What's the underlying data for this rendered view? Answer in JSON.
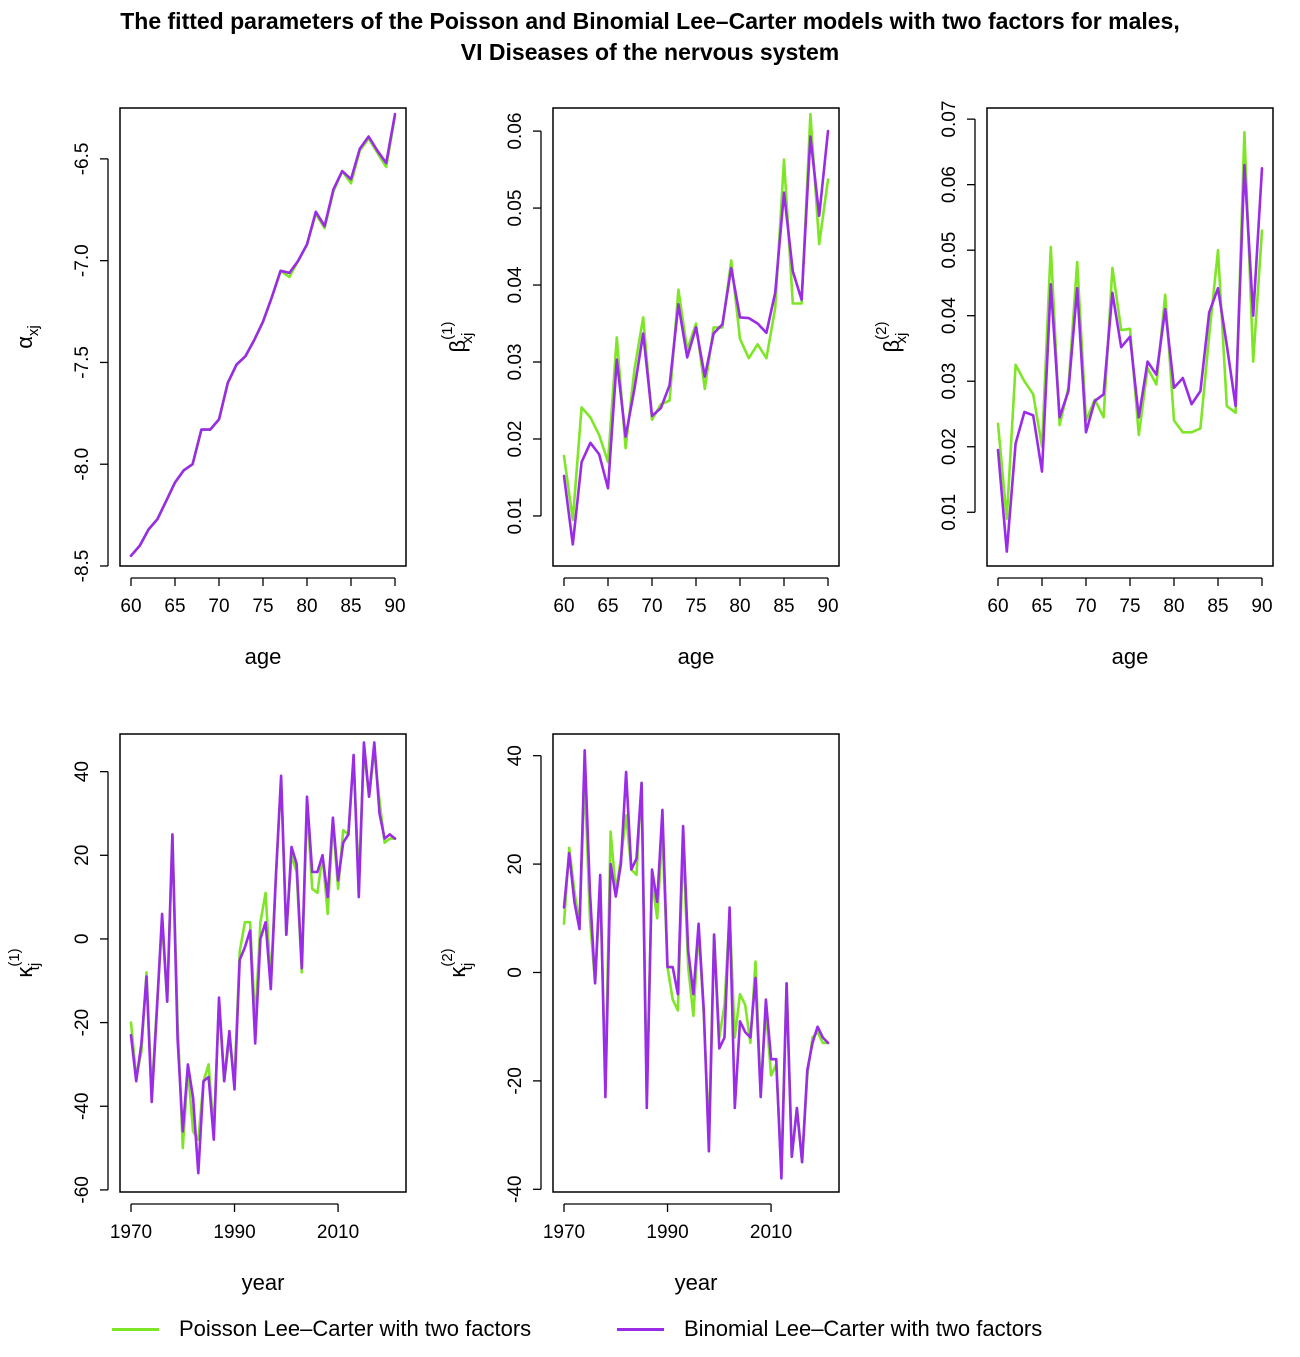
{
  "title": {
    "line1": "The fitted parameters of the Poisson and Binomial Lee–Carter models with two factors for males,",
    "line2": "VI Diseases of the nervous system"
  },
  "legend": {
    "items": [
      {
        "label": "Poisson Lee–Carter with two factors",
        "color": "#7FE627"
      },
      {
        "label": "Binomial Lee–Carter with two factors",
        "color": "#9A2BE6"
      }
    ]
  },
  "chart_data": [
    {
      "id": "alpha",
      "type": "line",
      "xlabel": "age",
      "ylabel": {
        "base": "α",
        "sub": "xj",
        "sup": ""
      },
      "xlim": [
        60,
        90
      ],
      "ylim": [
        -8.5,
        -6.25
      ],
      "xticks": [
        60,
        65,
        70,
        75,
        80,
        85,
        90
      ],
      "yticks": [
        -8.5,
        -8.0,
        -7.5,
        -7.0,
        -6.5
      ],
      "yticklabels": [
        "-8.5",
        "-8.0",
        "-7.5",
        "-7.0",
        "-6.5"
      ],
      "x": [
        60,
        61,
        62,
        63,
        64,
        65,
        66,
        67,
        68,
        69,
        70,
        71,
        72,
        73,
        74,
        75,
        76,
        77,
        78,
        79,
        80,
        81,
        82,
        83,
        84,
        85,
        86,
        87,
        88,
        89,
        90
      ],
      "series": [
        {
          "name": "Poisson Lee–Carter with two factors",
          "values": [
            -8.45,
            -8.4,
            -8.32,
            -8.27,
            -8.18,
            -8.09,
            -8.03,
            -8.0,
            -7.83,
            -7.83,
            -7.78,
            -7.6,
            -7.51,
            -7.47,
            -7.39,
            -7.3,
            -7.18,
            -7.05,
            -7.08,
            -7.0,
            -6.92,
            -6.77,
            -6.84,
            -6.66,
            -6.56,
            -6.62,
            -6.46,
            -6.4,
            -6.47,
            -6.54,
            -6.29
          ]
        },
        {
          "name": "Binomial Lee–Carter with two factors",
          "values": [
            -8.45,
            -8.4,
            -8.32,
            -8.27,
            -8.18,
            -8.09,
            -8.03,
            -8.0,
            -7.83,
            -7.83,
            -7.78,
            -7.6,
            -7.51,
            -7.47,
            -7.39,
            -7.3,
            -7.18,
            -7.05,
            -7.06,
            -7.0,
            -6.92,
            -6.76,
            -6.83,
            -6.65,
            -6.56,
            -6.6,
            -6.45,
            -6.39,
            -6.46,
            -6.52,
            -6.28
          ]
        }
      ]
    },
    {
      "id": "beta1",
      "type": "line",
      "xlabel": "age",
      "ylabel": {
        "base": "β",
        "sub": "xj",
        "sup": "(1)"
      },
      "xlim": [
        60,
        90
      ],
      "ylim": [
        0.0035,
        0.063
      ],
      "xticks": [
        60,
        65,
        70,
        75,
        80,
        85,
        90
      ],
      "yticks": [
        0.01,
        0.02,
        0.03,
        0.04,
        0.05,
        0.06
      ],
      "yticklabels": [
        "0.01",
        "0.02",
        "0.03",
        "0.04",
        "0.05",
        "0.06"
      ],
      "x": [
        60,
        61,
        62,
        63,
        64,
        65,
        66,
        67,
        68,
        69,
        70,
        71,
        72,
        73,
        74,
        75,
        76,
        77,
        78,
        79,
        80,
        81,
        82,
        83,
        84,
        85,
        86,
        87,
        88,
        89,
        90
      ],
      "series": [
        {
          "name": "Poisson Lee–Carter with two factors",
          "values": [
            0.0178,
            0.0095,
            0.0241,
            0.0228,
            0.0205,
            0.017,
            0.0332,
            0.0188,
            0.029,
            0.0358,
            0.0225,
            0.0245,
            0.025,
            0.0394,
            0.0316,
            0.035,
            0.0265,
            0.0345,
            0.0345,
            0.0432,
            0.033,
            0.0305,
            0.0323,
            0.0305,
            0.037,
            0.0563,
            0.0376,
            0.0376,
            0.0622,
            0.0453,
            0.0537
          ]
        },
        {
          "name": "Binomial Lee–Carter with two factors",
          "values": [
            0.0152,
            0.0063,
            0.017,
            0.0195,
            0.018,
            0.0136,
            0.0303,
            0.0203,
            0.0265,
            0.0337,
            0.023,
            0.024,
            0.027,
            0.0375,
            0.0306,
            0.0345,
            0.0281,
            0.0337,
            0.0349,
            0.0422,
            0.0358,
            0.0357,
            0.035,
            0.0338,
            0.039,
            0.052,
            0.0418,
            0.0381,
            0.0593,
            0.049,
            0.06
          ]
        }
      ]
    },
    {
      "id": "beta2",
      "type": "line",
      "xlabel": "age",
      "ylabel": {
        "base": "β",
        "sub": "xj",
        "sup": "(2)"
      },
      "xlim": [
        60,
        90
      ],
      "ylim": [
        0.0018,
        0.0717
      ],
      "xticks": [
        60,
        65,
        70,
        75,
        80,
        85,
        90
      ],
      "yticks": [
        0.01,
        0.02,
        0.03,
        0.04,
        0.05,
        0.06,
        0.07
      ],
      "yticklabels": [
        "0.01",
        "0.02",
        "0.03",
        "0.04",
        "0.05",
        "0.06",
        "0.07"
      ],
      "x": [
        60,
        61,
        62,
        63,
        64,
        65,
        66,
        67,
        68,
        69,
        70,
        71,
        72,
        73,
        74,
        75,
        76,
        77,
        78,
        79,
        80,
        81,
        82,
        83,
        84,
        85,
        86,
        87,
        88,
        89,
        90
      ],
      "series": [
        {
          "name": "Poisson Lee–Carter with two factors",
          "values": [
            0.0235,
            0.009,
            0.0325,
            0.03,
            0.028,
            0.02,
            0.0505,
            0.0233,
            0.029,
            0.0482,
            0.024,
            0.0272,
            0.0245,
            0.0473,
            0.0378,
            0.038,
            0.0218,
            0.032,
            0.0295,
            0.0432,
            0.024,
            0.0222,
            0.0222,
            0.0228,
            0.037,
            0.05,
            0.0262,
            0.0252,
            0.068,
            0.033,
            0.053
          ]
        },
        {
          "name": "Binomial Lee–Carter with two factors",
          "values": [
            0.0195,
            0.004,
            0.0205,
            0.0253,
            0.0248,
            0.0162,
            0.0448,
            0.0245,
            0.0285,
            0.0442,
            0.0222,
            0.027,
            0.028,
            0.0435,
            0.0352,
            0.0368,
            0.0245,
            0.033,
            0.031,
            0.041,
            0.029,
            0.0305,
            0.0265,
            0.0285,
            0.0405,
            0.0442,
            0.0355,
            0.0262,
            0.063,
            0.04,
            0.0625
          ]
        }
      ]
    },
    {
      "id": "kappa1",
      "type": "line",
      "xlabel": "year",
      "ylabel": {
        "base": "κ",
        "sub": "tj",
        "sup": "(1)"
      },
      "xlim": [
        1970,
        2021
      ],
      "ylim": [
        -60.5,
        49
      ],
      "xticks": [
        1970,
        1990,
        2010
      ],
      "yticks": [
        -60,
        -40,
        -20,
        0,
        20,
        40
      ],
      "yticklabels": [
        "-60",
        "-40",
        "-20",
        "0",
        "20",
        "40"
      ],
      "x": [
        1970,
        1971,
        1972,
        1973,
        1974,
        1975,
        1976,
        1977,
        1978,
        1979,
        1980,
        1981,
        1982,
        1983,
        1984,
        1985,
        1986,
        1987,
        1988,
        1989,
        1990,
        1991,
        1992,
        1993,
        1994,
        1995,
        1996,
        1997,
        1998,
        1999,
        2000,
        2001,
        2002,
        2003,
        2004,
        2005,
        2006,
        2007,
        2008,
        2009,
        2010,
        2011,
        2012,
        2013,
        2014,
        2015,
        2016,
        2017,
        2018,
        2019,
        2020,
        2021
      ],
      "series": [
        {
          "name": "Poisson Lee–Carter with two factors",
          "values": [
            -20,
            -33,
            -27,
            -8,
            -37,
            -16,
            4,
            -15,
            25,
            -20,
            -50,
            -31,
            -46,
            -48,
            -34,
            -30,
            -46,
            -15,
            -34,
            -24,
            -34,
            -3,
            4,
            4,
            -20,
            4,
            11,
            -10,
            15,
            38,
            1,
            20,
            16,
            -8,
            32,
            12,
            11,
            20,
            6,
            28,
            12,
            26,
            25,
            43,
            14,
            45,
            34,
            45,
            33,
            23,
            24,
            24
          ]
        },
        {
          "name": "Binomial Lee–Carter with two factors",
          "values": [
            -23,
            -34,
            -25,
            -9,
            -39,
            -17,
            6,
            -15,
            25,
            -24,
            -46,
            -30,
            -38,
            -56,
            -34,
            -33,
            -48,
            -14,
            -34,
            -22,
            -36,
            -5,
            -2,
            2,
            -25,
            0,
            4,
            -12,
            15,
            39,
            1,
            22,
            18,
            -7,
            34,
            16,
            16,
            20,
            10,
            29,
            14,
            23,
            25,
            44,
            10,
            47,
            34,
            47,
            30,
            24,
            25,
            24
          ]
        }
      ]
    },
    {
      "id": "kappa2",
      "type": "line",
      "xlabel": "year",
      "ylabel": {
        "base": "κ",
        "sub": "tj",
        "sup": "(2)"
      },
      "xlim": [
        1970,
        2021
      ],
      "ylim": [
        -40.5,
        44
      ],
      "xticks": [
        1970,
        1990,
        2010
      ],
      "yticks": [
        -40,
        -20,
        0,
        20,
        40
      ],
      "yticklabels": [
        "-40",
        "-20",
        "0",
        "20",
        "40"
      ],
      "x": [
        1970,
        1971,
        1972,
        1973,
        1974,
        1975,
        1976,
        1977,
        1978,
        1979,
        1980,
        1981,
        1982,
        1983,
        1984,
        1985,
        1986,
        1987,
        1988,
        1989,
        1990,
        1991,
        1992,
        1993,
        1994,
        1995,
        1996,
        1997,
        1998,
        1999,
        2000,
        2001,
        2002,
        2003,
        2004,
        2005,
        2006,
        2007,
        2008,
        2009,
        2010,
        2011,
        2012,
        2013,
        2014,
        2015,
        2016,
        2017,
        2018,
        2019,
        2020,
        2021
      ],
      "series": [
        {
          "name": "Poisson Lee–Carter with two factors",
          "values": [
            9,
            23,
            15,
            9,
            36,
            10,
            -2,
            16,
            -20,
            26,
            15,
            21,
            29,
            19,
            18,
            35,
            -22,
            17,
            10,
            26,
            1,
            -5,
            -7,
            24,
            1,
            -8,
            8,
            -8,
            -30,
            7,
            -12,
            -6,
            11,
            -12,
            -4,
            -6,
            -13,
            2,
            -22,
            -7,
            -19,
            -17,
            -36,
            -2,
            -34,
            -25,
            -35,
            -19,
            -12,
            -11,
            -13,
            -13
          ]
        },
        {
          "name": "Binomial Lee–Carter with two factors",
          "values": [
            12,
            22,
            13,
            8,
            41,
            15,
            -2,
            18,
            -23,
            20,
            14,
            20,
            37,
            19,
            21,
            35,
            -25,
            19,
            13,
            30,
            1,
            1,
            -4,
            27,
            4,
            -4,
            9,
            -7,
            -33,
            7,
            -14,
            -12,
            12,
            -25,
            -9,
            -11,
            -12,
            -1,
            -23,
            -5,
            -16,
            -16,
            -38,
            -2,
            -34,
            -25,
            -35,
            -18,
            -13,
            -10,
            -12,
            -13
          ]
        }
      ]
    }
  ]
}
